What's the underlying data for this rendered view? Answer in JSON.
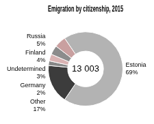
{
  "chart_data": {
    "type": "doughnut",
    "title": "Emigration by citizenship, 2015",
    "annotations": [
      "13 003"
    ],
    "categories": [
      "Estonia",
      "Other",
      "Germany",
      "Undetermined",
      "Finland",
      "Russia"
    ],
    "values": [
      69,
      17,
      2,
      3,
      4,
      5
    ],
    "value_labels": [
      "69%",
      "17%",
      "2%",
      "3%",
      "4%",
      "5%"
    ],
    "colors": [
      "#b3b3b3",
      "#3c3c3c",
      "#878787",
      "#d9b3b3",
      "#8c8c8c",
      "#c9a0a0"
    ],
    "data_labels": true
  }
}
